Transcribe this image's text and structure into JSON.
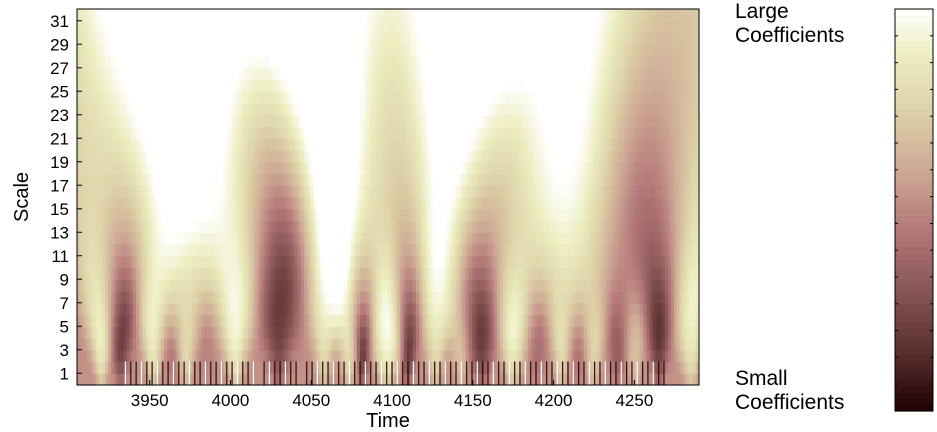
{
  "chart_data": {
    "type": "heatmap",
    "title": "",
    "xlabel": "Time",
    "ylabel": "Scale",
    "xlim": [
      3905,
      4290
    ],
    "ylim": [
      0,
      32
    ],
    "x_ticks": [
      3950,
      4000,
      4050,
      4100,
      4150,
      4200,
      4250
    ],
    "y_ticks": [
      1,
      3,
      5,
      7,
      9,
      11,
      13,
      15,
      17,
      19,
      21,
      23,
      25,
      27,
      29,
      31
    ],
    "colormap": "pink",
    "colorbar": {
      "top_label": "Large Coefficients",
      "bottom_label": "Small Coefficients",
      "orientation": "vertical",
      "position": "right"
    },
    "peaks": [
      {
        "time": 3920,
        "level": 0.95,
        "width": 4
      },
      {
        "time": 3952,
        "level": 0.92,
        "width": 4
      },
      {
        "time": 3972,
        "level": 0.85,
        "width": 4
      },
      {
        "time": 4003,
        "level": 0.95,
        "width": 5
      },
      {
        "time": 4058,
        "level": 0.85,
        "width": 4
      },
      {
        "time": 4073,
        "level": 0.85,
        "width": 4
      },
      {
        "time": 4097,
        "level": 1.0,
        "width": 6
      },
      {
        "time": 4127,
        "level": 0.85,
        "width": 4
      },
      {
        "time": 4142,
        "level": 0.7,
        "width": 4
      },
      {
        "time": 4175,
        "level": 0.95,
        "width": 5
      },
      {
        "time": 4205,
        "level": 0.85,
        "width": 4
      },
      {
        "time": 4225,
        "level": 0.8,
        "width": 4
      },
      {
        "time": 4250,
        "level": 0.7,
        "width": 4
      },
      {
        "time": 4285,
        "level": 0.9,
        "width": 5
      }
    ],
    "troughs": [
      {
        "time": 3932,
        "level": 0.15,
        "width": 4
      },
      {
        "time": 3965,
        "level": 0.4,
        "width": 4
      },
      {
        "time": 3985,
        "level": 0.5,
        "width": 4
      },
      {
        "time": 4030,
        "level": 0.2,
        "width": 5
      },
      {
        "time": 4082,
        "level": 0.05,
        "width": 3
      },
      {
        "time": 4110,
        "level": 0.05,
        "width": 3
      },
      {
        "time": 4155,
        "level": 0.15,
        "width": 5
      },
      {
        "time": 4190,
        "level": 0.4,
        "width": 4
      },
      {
        "time": 4215,
        "level": 0.4,
        "width": 4
      },
      {
        "time": 4240,
        "level": 0.3,
        "width": 4
      },
      {
        "time": 4265,
        "level": 0.12,
        "width": 4
      }
    ],
    "grid": false
  }
}
